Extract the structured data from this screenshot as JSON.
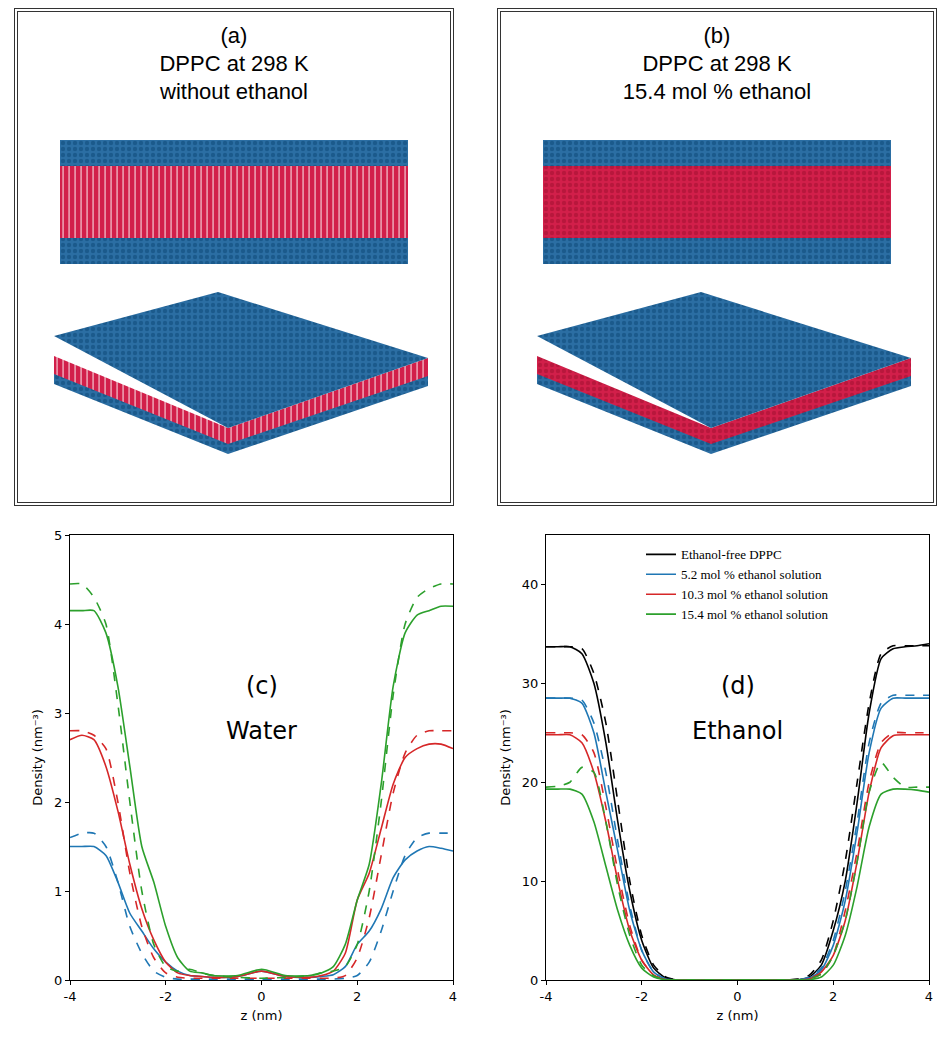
{
  "panels": [
    {
      "letter": "(a)",
      "title_lines": [
        "DPPC at 298 K",
        "without ethanol"
      ]
    },
    {
      "letter": "(b)",
      "title_lines": [
        "DPPC at 298 K",
        "15.4 mol % ethanol"
      ]
    }
  ],
  "chart_data": [
    {
      "type": "line",
      "annotations": [
        "(c)",
        "Water"
      ],
      "x_label": "z (nm)",
      "y_label": "Density (nm⁻³)",
      "xlim": [
        -4,
        4
      ],
      "xticks": [
        -4,
        -2,
        0,
        2,
        4
      ],
      "ylim": [
        0,
        5
      ],
      "yticks": [
        0,
        1,
        2,
        3,
        4,
        5
      ],
      "x": [
        -4,
        -3.75,
        -3.5,
        -3.25,
        -3,
        -2.75,
        -2.5,
        -2.25,
        -2,
        -1.75,
        -1.5,
        -1.25,
        -1,
        -0.5,
        0,
        0.5,
        1,
        1.25,
        1.5,
        1.75,
        2,
        2.25,
        2.5,
        2.75,
        3,
        3.25,
        3.5,
        3.75,
        4
      ],
      "series": [
        {
          "color": "#1f77b4",
          "line_style": "solid",
          "values": [
            1.5,
            1.5,
            1.5,
            1.4,
            1.1,
            0.75,
            0.55,
            0.35,
            0.2,
            0.1,
            0.05,
            0.04,
            0.03,
            0.04,
            0.1,
            0.04,
            0.03,
            0.04,
            0.06,
            0.15,
            0.4,
            0.55,
            0.8,
            1.15,
            1.35,
            1.45,
            1.5,
            1.48,
            1.45
          ]
        },
        {
          "color": "#1f77b4",
          "line_style": "dashed",
          "values": [
            1.6,
            1.65,
            1.65,
            1.5,
            1.1,
            0.6,
            0.3,
            0.1,
            0.03,
            0.01,
            0.01,
            0.01,
            0.01,
            0.01,
            0.01,
            0.01,
            0.01,
            0.01,
            0.01,
            0.02,
            0.05,
            0.2,
            0.55,
            1.0,
            1.4,
            1.6,
            1.65,
            1.65,
            1.65
          ]
        },
        {
          "color": "#d62728",
          "line_style": "solid",
          "values": [
            2.7,
            2.75,
            2.7,
            2.4,
            1.9,
            1.3,
            0.8,
            0.45,
            0.2,
            0.08,
            0.05,
            0.04,
            0.03,
            0.04,
            0.1,
            0.04,
            0.03,
            0.05,
            0.1,
            0.3,
            0.9,
            1.2,
            1.7,
            2.2,
            2.5,
            2.6,
            2.65,
            2.65,
            2.6
          ]
        },
        {
          "color": "#d62728",
          "line_style": "dashed",
          "values": [
            2.8,
            2.8,
            2.75,
            2.6,
            2.0,
            1.2,
            0.6,
            0.25,
            0.08,
            0.03,
            0.02,
            0.02,
            0.02,
            0.02,
            0.02,
            0.02,
            0.02,
            0.02,
            0.02,
            0.05,
            0.25,
            0.7,
            1.4,
            2.1,
            2.55,
            2.75,
            2.8,
            2.8,
            2.8
          ]
        },
        {
          "color": "#2ca02c",
          "line_style": "solid",
          "values": [
            4.15,
            4.15,
            4.15,
            3.9,
            3.3,
            2.4,
            1.5,
            1.1,
            0.6,
            0.25,
            0.1,
            0.08,
            0.05,
            0.05,
            0.12,
            0.05,
            0.05,
            0.08,
            0.15,
            0.4,
            0.9,
            1.3,
            2.2,
            3.3,
            3.9,
            4.1,
            4.15,
            4.2,
            4.2
          ]
        },
        {
          "color": "#2ca02c",
          "line_style": "dashed",
          "values": [
            4.45,
            4.45,
            4.3,
            4.0,
            3.1,
            2.0,
            1.0,
            0.4,
            0.15,
            0.1,
            0.12,
            0.08,
            0.05,
            0.03,
            0.02,
            0.03,
            0.05,
            0.08,
            0.1,
            0.15,
            0.4,
            1.0,
            2.0,
            3.2,
            4.0,
            4.3,
            4.4,
            4.45,
            4.45
          ]
        }
      ]
    },
    {
      "type": "line",
      "annotations": [
        "(d)",
        "Ethanol"
      ],
      "x_label": "z (nm)",
      "y_label": "Density (nm⁻³)",
      "xlim": [
        -4,
        4
      ],
      "xticks": [
        -4,
        -2,
        0,
        2,
        4
      ],
      "ylim": [
        0,
        45
      ],
      "yticks": [
        0,
        10,
        20,
        30,
        40
      ],
      "legend": "upper center",
      "x": [
        -4,
        -3.75,
        -3.5,
        -3.25,
        -3,
        -2.75,
        -2.5,
        -2.25,
        -2,
        -1.75,
        -1.5,
        -1.25,
        -1,
        -0.5,
        0,
        0.5,
        1,
        1.25,
        1.5,
        1.75,
        2,
        2.25,
        2.5,
        2.75,
        3,
        3.25,
        3.5,
        3.75,
        4
      ],
      "series": [
        {
          "name": "Ethanol-free DPPC",
          "color": "#000000",
          "line_style": "solid",
          "values": [
            33.7,
            33.7,
            33.7,
            33,
            30,
            24,
            16,
            9,
            4,
            1.2,
            0.2,
            0,
            0,
            0,
            0,
            0,
            0,
            0,
            0.3,
            1.5,
            5,
            10,
            18,
            27,
            32.5,
            33.5,
            33.7,
            33.8,
            34
          ]
        },
        {
          "color": "#000000",
          "line_style": "dashed",
          "values": [
            33.7,
            33.7,
            33.7,
            33.5,
            31,
            26,
            18,
            10,
            4.5,
            1.5,
            0.3,
            0,
            0,
            0,
            0,
            0,
            0,
            0.1,
            0.5,
            2,
            6,
            12,
            20,
            28,
            33,
            33.8,
            33.8,
            33.8,
            33.8
          ]
        },
        {
          "name": "5.2 mol % ethanol solution",
          "color": "#1f77b4",
          "line_style": "solid",
          "values": [
            28.5,
            28.5,
            28.5,
            28,
            25,
            19,
            13,
            7,
            3,
            0.8,
            0.1,
            0,
            0,
            0,
            0,
            0,
            0,
            0,
            0.2,
            1,
            3.5,
            8,
            15,
            23,
            27.5,
            28.5,
            28.5,
            28.5,
            28.5
          ]
        },
        {
          "color": "#1f77b4",
          "line_style": "dashed",
          "values": [
            28.5,
            28.5,
            28.5,
            28.3,
            26,
            21,
            14,
            7.5,
            3,
            0.8,
            0.1,
            0,
            0,
            0,
            0,
            0,
            0,
            0,
            0.3,
            1.2,
            4,
            9,
            16,
            24,
            28,
            28.8,
            28.8,
            28.8,
            28.8
          ]
        },
        {
          "name": "10.3 mol % ethanol solution",
          "color": "#d62728",
          "line_style": "solid",
          "values": [
            24.8,
            24.8,
            24.8,
            24,
            21,
            16,
            10,
            5,
            2,
            0.5,
            0.05,
            0,
            0,
            0,
            0,
            0,
            0,
            0,
            0.1,
            0.8,
            2.5,
            6,
            12,
            19,
            23.5,
            24.7,
            24.8,
            24.8,
            24.8
          ]
        },
        {
          "color": "#d62728",
          "line_style": "dashed",
          "values": [
            25,
            25,
            25,
            24.8,
            23,
            17.5,
            11,
            5.5,
            2,
            0.5,
            0.05,
            0,
            0,
            0,
            0,
            0,
            0,
            0,
            0.1,
            0.6,
            2.5,
            7,
            13,
            20,
            24,
            25,
            25,
            25,
            25
          ]
        },
        {
          "name": "15.4 mol % ethanol solution",
          "color": "#2ca02c",
          "line_style": "solid",
          "values": [
            19.3,
            19.3,
            19.3,
            18.8,
            16,
            11.5,
            7,
            3.5,
            1.2,
            0.3,
            0.03,
            0,
            0,
            0,
            0,
            0,
            0,
            0,
            0.03,
            0.3,
            1.5,
            4.5,
            9.5,
            15.5,
            18.8,
            19.3,
            19.3,
            19.2,
            19
          ]
        },
        {
          "color": "#2ca02c",
          "line_style": "dashed",
          "values": [
            19.5,
            19.6,
            20,
            21.5,
            21,
            16,
            9.5,
            4.5,
            1.5,
            0.4,
            0.05,
            0,
            0,
            0,
            0,
            0,
            0,
            0,
            0.1,
            0.6,
            2.5,
            6,
            12,
            19,
            22,
            20.5,
            19.5,
            19.5,
            19.5
          ]
        }
      ]
    }
  ]
}
